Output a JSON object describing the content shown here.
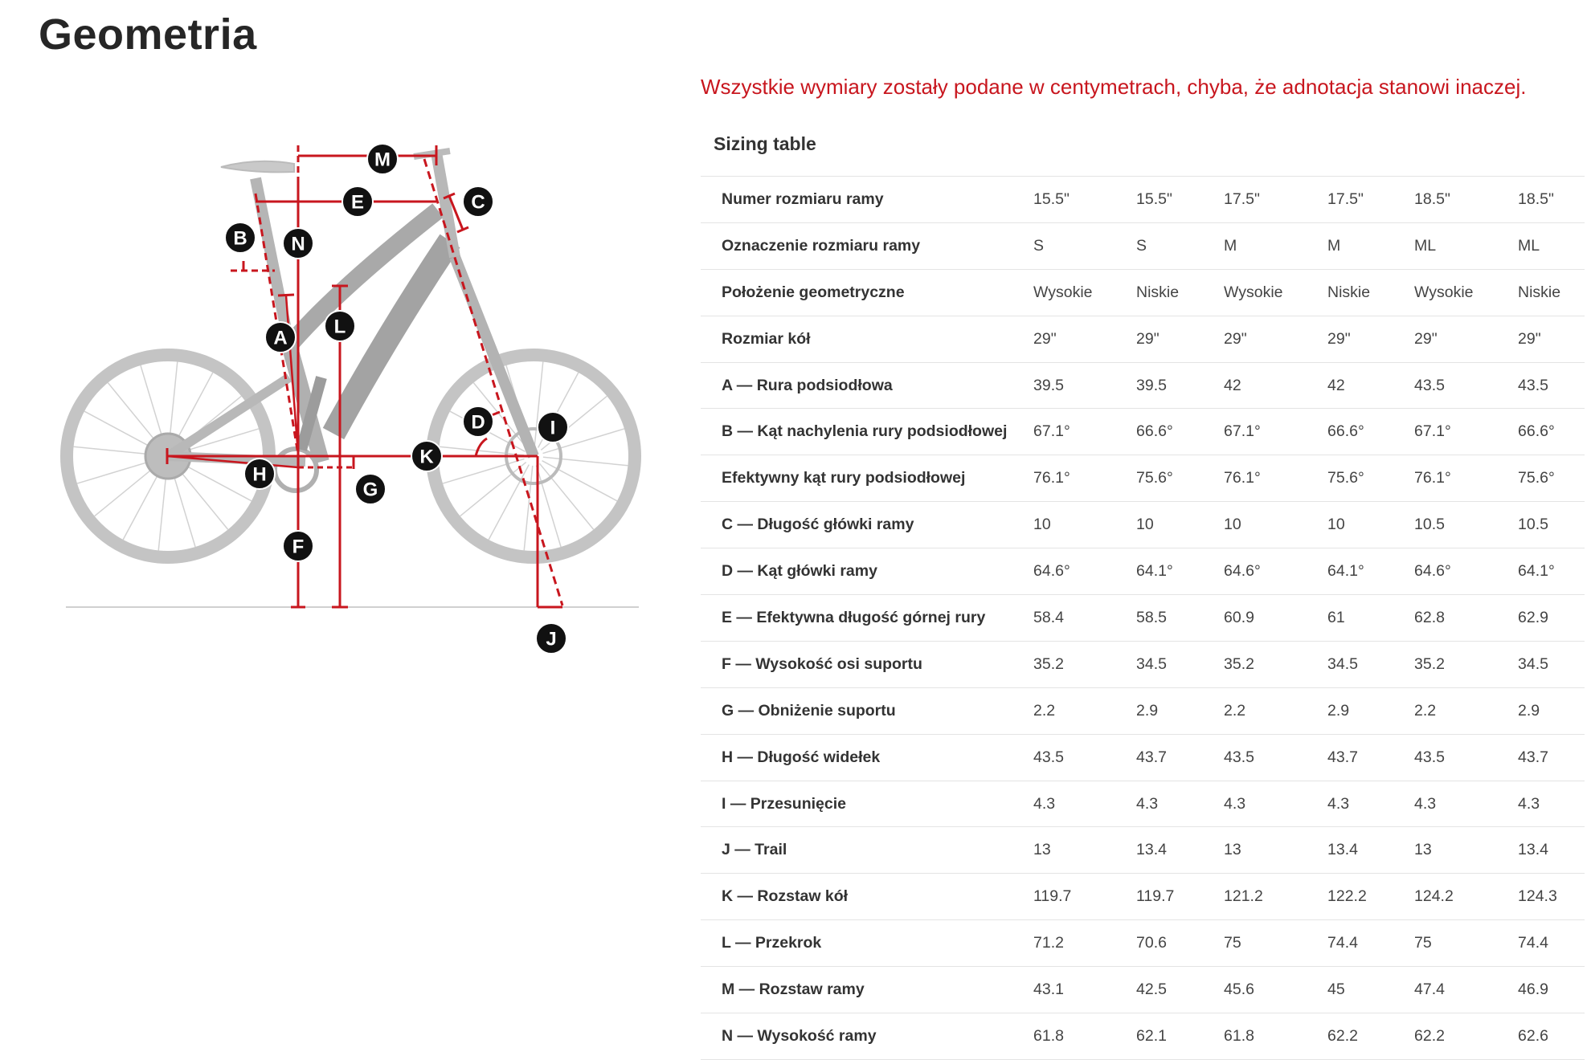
{
  "page": {
    "title": "Geometria",
    "note": "Wszystkie wymiary zostały podane w centymetrach, chyba, że adnotacja stanowi inaczej.",
    "accent_color": "#c8161e"
  },
  "diagram": {
    "labels": [
      "M",
      "E",
      "C",
      "B",
      "N",
      "A",
      "L",
      "D",
      "I",
      "K",
      "H",
      "G",
      "F",
      "J"
    ]
  },
  "table": {
    "caption": "Sizing table",
    "rows": [
      {
        "label": "Numer rozmiaru ramy",
        "values": [
          "15.5\"",
          "15.5\"",
          "17.5\"",
          "17.5\"",
          "18.5\"",
          "18.5\""
        ]
      },
      {
        "label": "Oznaczenie rozmiaru ramy",
        "values": [
          "S",
          "S",
          "M",
          "M",
          "ML",
          "ML"
        ]
      },
      {
        "label": "Położenie geometryczne",
        "values": [
          "Wysokie",
          "Niskie",
          "Wysokie",
          "Niskie",
          "Wysokie",
          "Niskie"
        ]
      },
      {
        "label": "Rozmiar kół",
        "values": [
          "29\"",
          "29\"",
          "29\"",
          "29\"",
          "29\"",
          "29\""
        ]
      },
      {
        "label": "A — Rura podsiodłowa",
        "values": [
          "39.5",
          "39.5",
          "42",
          "42",
          "43.5",
          "43.5"
        ]
      },
      {
        "label": "B — Kąt nachylenia rury podsiodłowej",
        "values": [
          "67.1°",
          "66.6°",
          "67.1°",
          "66.6°",
          "67.1°",
          "66.6°"
        ]
      },
      {
        "label": "Efektywny kąt rury podsiodłowej",
        "values": [
          "76.1°",
          "75.6°",
          "76.1°",
          "75.6°",
          "76.1°",
          "75.6°"
        ]
      },
      {
        "label": "C — Długość główki ramy",
        "values": [
          "10",
          "10",
          "10",
          "10",
          "10.5",
          "10.5"
        ]
      },
      {
        "label": "D — Kąt główki ramy",
        "values": [
          "64.6°",
          "64.1°",
          "64.6°",
          "64.1°",
          "64.6°",
          "64.1°"
        ]
      },
      {
        "label": "E — Efektywna długość górnej rury",
        "values": [
          "58.4",
          "58.5",
          "60.9",
          "61",
          "62.8",
          "62.9"
        ]
      },
      {
        "label": "F — Wysokość osi suportu",
        "values": [
          "35.2",
          "34.5",
          "35.2",
          "34.5",
          "35.2",
          "34.5"
        ]
      },
      {
        "label": "G — Obniżenie suportu",
        "values": [
          "2.2",
          "2.9",
          "2.2",
          "2.9",
          "2.2",
          "2.9"
        ]
      },
      {
        "label": "H — Długość widełek",
        "values": [
          "43.5",
          "43.7",
          "43.5",
          "43.7",
          "43.5",
          "43.7"
        ]
      },
      {
        "label": "I — Przesunięcie",
        "values": [
          "4.3",
          "4.3",
          "4.3",
          "4.3",
          "4.3",
          "4.3"
        ]
      },
      {
        "label": "J — Trail",
        "values": [
          "13",
          "13.4",
          "13",
          "13.4",
          "13",
          "13.4"
        ]
      },
      {
        "label": "K — Rozstaw kół",
        "values": [
          "119.7",
          "119.7",
          "121.2",
          "122.2",
          "124.2",
          "124.3"
        ]
      },
      {
        "label": "L — Przekrok",
        "values": [
          "71.2",
          "70.6",
          "75",
          "74.4",
          "75",
          "74.4"
        ]
      },
      {
        "label": "M — Rozstaw ramy",
        "values": [
          "43.1",
          "42.5",
          "45.6",
          "45",
          "47.4",
          "46.9"
        ]
      },
      {
        "label": "N — Wysokość ramy",
        "values": [
          "61.8",
          "62.1",
          "61.8",
          "62.2",
          "62.2",
          "62.6"
        ]
      }
    ]
  }
}
